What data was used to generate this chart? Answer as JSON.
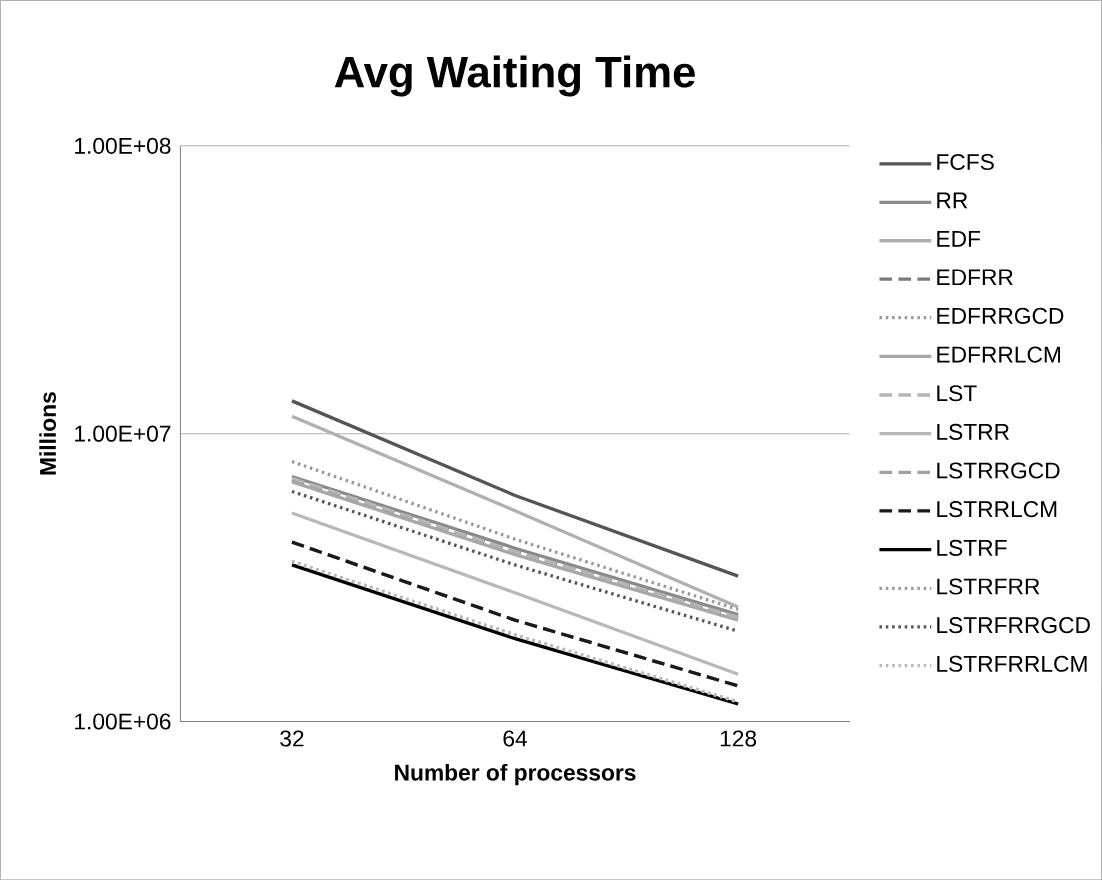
{
  "chart_data": {
    "type": "line",
    "title": "Avg Waiting Time",
    "xlabel": "Number of processors",
    "ylabel": "Millions",
    "categories": [
      "32",
      "64",
      "128"
    ],
    "log": "y",
    "ylim": [
      1000000,
      100000000
    ],
    "yticks": [
      {
        "value": 1000000,
        "label": "1.00E+06"
      },
      {
        "value": 10000000,
        "label": "1.00E+07"
      },
      {
        "value": 100000000,
        "label": "1.00E+08"
      }
    ],
    "grid": "y",
    "legend": "right",
    "marker": "none",
    "series": [
      {
        "name": "FCFS",
        "color": "#555555",
        "line_style": "solid",
        "values": [
          13000000,
          6100000,
          3200000
        ]
      },
      {
        "name": "RR",
        "color": "#8a8a8a",
        "line_style": "solid",
        "values": [
          7100000,
          4000000,
          2350000
        ]
      },
      {
        "name": "EDF",
        "color": "#b0b0b0",
        "line_style": "solid",
        "values": [
          11500000,
          5400000,
          2500000
        ]
      },
      {
        "name": "EDFRR",
        "color": "#7a7a7a",
        "line_style": "dashed",
        "values": [
          6900000,
          3900000,
          2300000
        ]
      },
      {
        "name": "EDFRRGCD",
        "color": "#999999",
        "line_style": "dotted",
        "values": [
          8000000,
          4300000,
          2450000
        ]
      },
      {
        "name": "EDFRRLCM",
        "color": "#a8a8a8",
        "line_style": "solid",
        "values": [
          6800000,
          3800000,
          2250000
        ]
      },
      {
        "name": "LST",
        "color": "#b5b5b5",
        "line_style": "dashed",
        "values": [
          7000000,
          3900000,
          2300000
        ]
      },
      {
        "name": "LSTRR",
        "color": "#b8b8b8",
        "line_style": "solid",
        "values": [
          5300000,
          2800000,
          1460000
        ]
      },
      {
        "name": "LSTRRGCD",
        "color": "#a0a0a0",
        "line_style": "dashed",
        "values": [
          4200000,
          2250000,
          1330000
        ]
      },
      {
        "name": "LSTRRLCM",
        "color": "#1a1a1a",
        "line_style": "dashed",
        "values": [
          4200000,
          2250000,
          1330000
        ]
      },
      {
        "name": "LSTRF",
        "color": "#000000",
        "line_style": "solid",
        "values": [
          3500000,
          1940000,
          1150000
        ]
      },
      {
        "name": "LSTRFRR",
        "color": "#9a9a9a",
        "line_style": "dotted",
        "values": [
          3600000,
          2000000,
          1170000
        ]
      },
      {
        "name": "LSTRFRRGCD",
        "color": "#555555",
        "line_style": "dotted",
        "values": [
          6300000,
          3500000,
          2060000
        ]
      },
      {
        "name": "LSTRFRRLCM",
        "color": "#bbbbbb",
        "line_style": "dotted",
        "values": [
          3600000,
          2000000,
          1170000
        ]
      }
    ]
  }
}
